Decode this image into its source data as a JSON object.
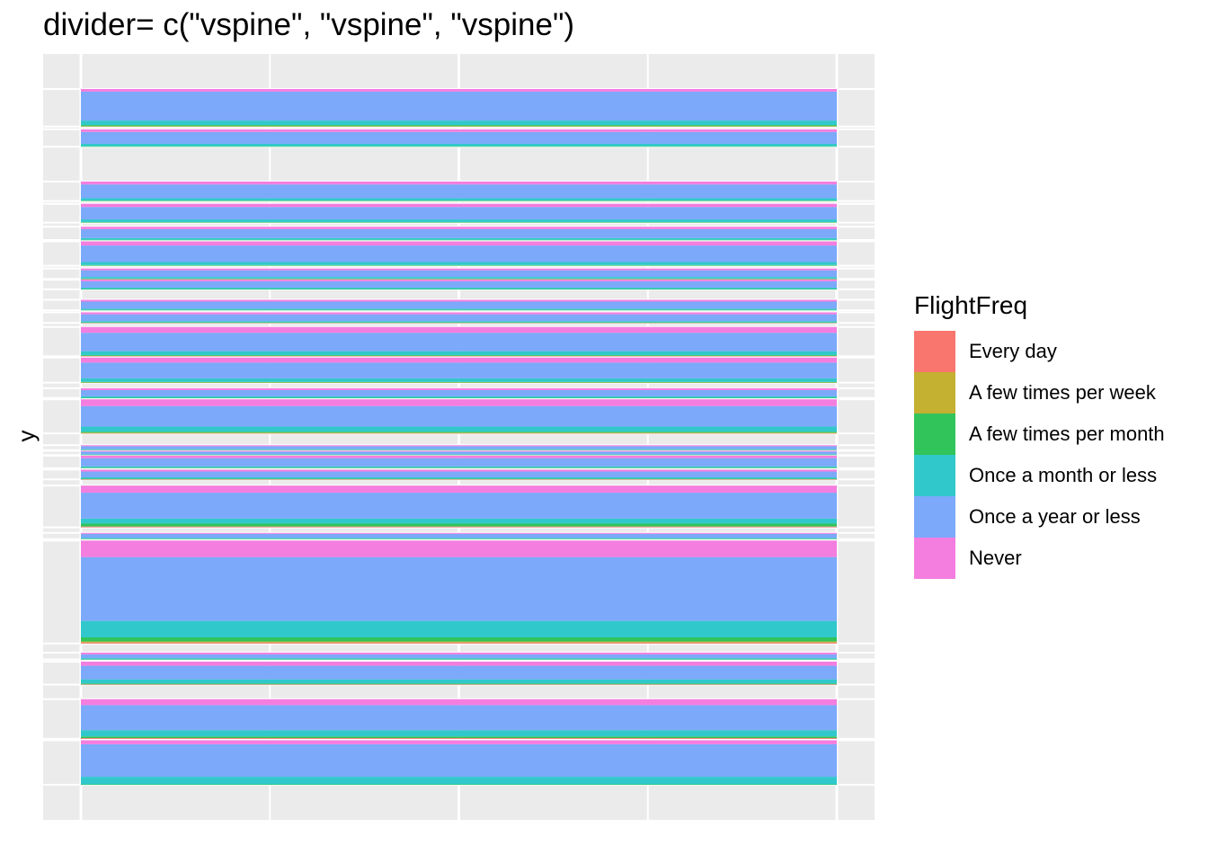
{
  "chart_data": {
    "type": "bar",
    "title": "divider= c(\"vspine\", \"vspine\", \"vspine\")",
    "xlabel": "",
    "ylabel": "y",
    "ylim": [
      0,
      1
    ],
    "xlim": [
      0,
      1
    ],
    "grid": true,
    "legend_position": "right",
    "legend": {
      "title": "FlightFreq",
      "entries": [
        {
          "label": "Every day",
          "color": "#F8766D"
        },
        {
          "label": "A few times per week",
          "color": "#C4B031"
        },
        {
          "label": "A few times per month",
          "color": "#31C45B"
        },
        {
          "label": "Once a month or less",
          "color": "#31C8CB"
        },
        {
          "label": "Once a year or less",
          "color": "#7CA9FA"
        },
        {
          "label": "Never",
          "color": "#F37EDF"
        }
      ]
    },
    "series_order": [
      "Every day",
      "A few times per week",
      "A few times per month",
      "Once a month or less",
      "Once a year or less",
      "Never"
    ],
    "blocks": [
      {
        "ymin": 0.0,
        "ymax": 0.064,
        "proportions": [
          0.0,
          0.0,
          0.01,
          0.17,
          0.73,
          0.09
        ]
      },
      {
        "ymin": 0.066,
        "ymax": 0.123,
        "proportions": [
          0.02,
          0.0,
          0.04,
          0.16,
          0.63,
          0.15
        ]
      },
      {
        "ymin": 0.144,
        "ymax": 0.177,
        "proportions": [
          0.01,
          0.0,
          0.04,
          0.18,
          0.59,
          0.18
        ]
      },
      {
        "ymin": 0.18,
        "ymax": 0.19,
        "proportions": [
          0.0,
          0.0,
          0.05,
          0.15,
          0.55,
          0.25
        ]
      },
      {
        "ymin": 0.203,
        "ymax": 0.351,
        "proportions": [
          0.01,
          0.01,
          0.04,
          0.16,
          0.62,
          0.16
        ]
      },
      {
        "ymin": 0.353,
        "ymax": 0.362,
        "proportions": [
          0.0,
          0.0,
          0.09,
          0.09,
          0.68,
          0.14
        ]
      },
      {
        "ymin": 0.37,
        "ymax": 0.43,
        "proportions": [
          0.02,
          0.0,
          0.07,
          0.12,
          0.62,
          0.17
        ]
      },
      {
        "ymin": 0.439,
        "ymax": 0.453,
        "proportions": [
          0.01,
          0.0,
          0.06,
          0.13,
          0.6,
          0.2
        ]
      },
      {
        "ymin": 0.455,
        "ymax": 0.473,
        "proportions": [
          0.0,
          0.0,
          0.05,
          0.1,
          0.65,
          0.2
        ]
      },
      {
        "ymin": 0.474,
        "ymax": 0.48,
        "proportions": [
          0.0,
          0.0,
          0.1,
          0.1,
          0.6,
          0.2
        ]
      },
      {
        "ymin": 0.481,
        "ymax": 0.488,
        "proportions": [
          0.0,
          0.0,
          0.1,
          0.1,
          0.6,
          0.2
        ]
      },
      {
        "ymin": 0.505,
        "ymax": 0.554,
        "proportions": [
          0.01,
          0.01,
          0.03,
          0.15,
          0.6,
          0.2
        ]
      },
      {
        "ymin": 0.556,
        "ymax": 0.57,
        "proportions": [
          0.0,
          0.0,
          0.02,
          0.14,
          0.64,
          0.2
        ]
      },
      {
        "ymin": 0.578,
        "ymax": 0.614,
        "proportions": [
          0.0,
          0.01,
          0.02,
          0.14,
          0.63,
          0.2
        ]
      },
      {
        "ymin": 0.616,
        "ymax": 0.658,
        "proportions": [
          0.01,
          0.0,
          0.03,
          0.13,
          0.63,
          0.2
        ]
      },
      {
        "ymin": 0.664,
        "ymax": 0.679,
        "proportions": [
          0.01,
          0.0,
          0.03,
          0.12,
          0.65,
          0.19
        ]
      },
      {
        "ymin": 0.682,
        "ymax": 0.697,
        "proportions": [
          0.0,
          0.0,
          0.04,
          0.11,
          0.68,
          0.17
        ]
      },
      {
        "ymin": 0.712,
        "ymax": 0.726,
        "proportions": [
          0.0,
          0.0,
          0.04,
          0.13,
          0.66,
          0.17
        ]
      },
      {
        "ymin": 0.727,
        "ymax": 0.742,
        "proportions": [
          0.01,
          0.0,
          0.03,
          0.15,
          0.64,
          0.17
        ]
      },
      {
        "ymin": 0.746,
        "ymax": 0.781,
        "proportions": [
          0.0,
          0.0,
          0.03,
          0.12,
          0.68,
          0.17
        ]
      },
      {
        "ymin": 0.783,
        "ymax": 0.802,
        "proportions": [
          0.0,
          0.0,
          0.02,
          0.13,
          0.67,
          0.18
        ]
      },
      {
        "ymin": 0.808,
        "ymax": 0.835,
        "proportions": [
          0.0,
          0.0,
          0.03,
          0.14,
          0.66,
          0.17
        ]
      },
      {
        "ymin": 0.839,
        "ymax": 0.867,
        "proportions": [
          0.0,
          0.0,
          0.03,
          0.12,
          0.7,
          0.15
        ]
      },
      {
        "ymin": 0.917,
        "ymax": 0.942,
        "proportions": [
          0.0,
          0.0,
          0.03,
          0.14,
          0.68,
          0.15
        ]
      },
      {
        "ymin": 0.946,
        "ymax": 1.0,
        "proportions": [
          0.0,
          0.01,
          0.03,
          0.12,
          0.77,
          0.07
        ]
      }
    ]
  }
}
